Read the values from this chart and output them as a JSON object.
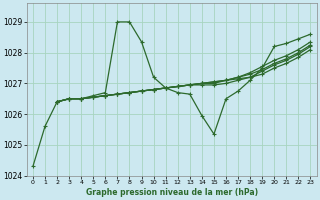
{
  "title": "Graphe pression niveau de la mer (hPa)",
  "bg_color": "#cce8f0",
  "line_color": "#2d6a2d",
  "grid_color": "#a8d4c0",
  "xlim": [
    -0.5,
    23.5
  ],
  "ylim": [
    1024.0,
    1029.6
  ],
  "yticks": [
    1024,
    1025,
    1026,
    1027,
    1028,
    1029
  ],
  "xticks": [
    0,
    1,
    2,
    3,
    4,
    5,
    6,
    7,
    8,
    9,
    10,
    11,
    12,
    13,
    14,
    15,
    16,
    17,
    18,
    19,
    20,
    21,
    22,
    23
  ],
  "line1_x": [
    0,
    1,
    2,
    3,
    4,
    5,
    6,
    7,
    8,
    9,
    10,
    11,
    12,
    13,
    14,
    15,
    16,
    17,
    18,
    19,
    20,
    21,
    22,
    23
  ],
  "line1_y": [
    1024.3,
    1025.6,
    1026.4,
    1026.5,
    1026.5,
    1026.6,
    1026.7,
    1029.0,
    1029.0,
    1028.35,
    1027.2,
    1026.85,
    1026.7,
    1026.65,
    1025.95,
    1025.35,
    1026.5,
    1026.75,
    1027.1,
    1027.5,
    1028.2,
    1028.3,
    1028.45,
    1028.6
  ],
  "line2_x": [
    2,
    3,
    4,
    5,
    6,
    7,
    8,
    9,
    10,
    11,
    12,
    13,
    14,
    15,
    16,
    17,
    18,
    19,
    20,
    21,
    22,
    23
  ],
  "line2_y": [
    1026.4,
    1026.5,
    1026.5,
    1026.55,
    1026.6,
    1026.65,
    1026.7,
    1026.75,
    1026.8,
    1026.85,
    1026.9,
    1026.95,
    1027.0,
    1027.05,
    1027.1,
    1027.15,
    1027.2,
    1027.3,
    1027.5,
    1027.65,
    1027.85,
    1028.1
  ],
  "line3_x": [
    2,
    3,
    4,
    5,
    6,
    7,
    8,
    9,
    10,
    11,
    12,
    13,
    14,
    15,
    16,
    17,
    18,
    19,
    20,
    21,
    22,
    23
  ],
  "line3_y": [
    1026.4,
    1026.5,
    1026.5,
    1026.55,
    1026.6,
    1026.65,
    1026.7,
    1026.75,
    1026.8,
    1026.85,
    1026.9,
    1026.95,
    1027.0,
    1027.05,
    1027.1,
    1027.2,
    1027.3,
    1027.45,
    1027.65,
    1027.8,
    1028.0,
    1028.25
  ],
  "line4_x": [
    2,
    3,
    4,
    5,
    6,
    7,
    8,
    9,
    10,
    11,
    12,
    13,
    14,
    15,
    16,
    17,
    18,
    19,
    20,
    21,
    22,
    23
  ],
  "line4_y": [
    1026.4,
    1026.5,
    1026.5,
    1026.55,
    1026.6,
    1026.65,
    1026.7,
    1026.75,
    1026.8,
    1026.85,
    1026.9,
    1026.95,
    1027.0,
    1027.0,
    1027.1,
    1027.2,
    1027.35,
    1027.55,
    1027.75,
    1027.9,
    1028.1,
    1028.35
  ],
  "line5_x": [
    2,
    3,
    4,
    5,
    6,
    7,
    8,
    9,
    10,
    11,
    12,
    13,
    14,
    15,
    16,
    17,
    18,
    19,
    20,
    21,
    22,
    23
  ],
  "line5_y": [
    1026.4,
    1026.5,
    1026.5,
    1026.55,
    1026.6,
    1026.65,
    1026.7,
    1026.75,
    1026.8,
    1026.85,
    1026.9,
    1026.95,
    1026.95,
    1026.95,
    1027.0,
    1027.1,
    1027.2,
    1027.4,
    1027.6,
    1027.75,
    1027.95,
    1028.2
  ]
}
